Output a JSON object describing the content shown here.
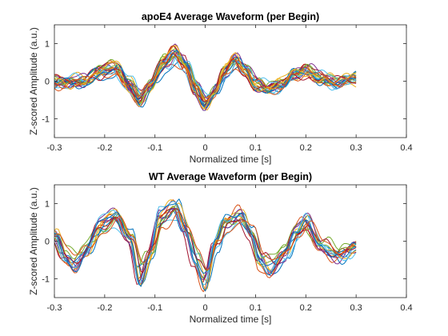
{
  "chart_data": [
    {
      "type": "line",
      "title": "apoE4 Average Waveform (per Begin)",
      "xlabel": "Normalized time [s]",
      "ylabel": "Z-scored Amplitude (a.u.)",
      "xlim": [
        -0.3,
        0.4
      ],
      "ylim": [
        -1.5,
        1.5
      ],
      "xticks": [
        "-0.3",
        "-0.2",
        "-0.1",
        "0",
        "0.1",
        "0.2",
        "0.3",
        "0.4"
      ],
      "yticks": [
        "-1",
        "0",
        "1"
      ],
      "grid": false,
      "legend": "none",
      "series_count": 24,
      "mean_waveform": {
        "x": [
          -0.3,
          -0.27,
          -0.24,
          -0.21,
          -0.18,
          -0.15,
          -0.13,
          -0.11,
          -0.08,
          -0.06,
          -0.04,
          -0.02,
          0.0,
          0.02,
          0.04,
          0.06,
          0.08,
          0.1,
          0.12,
          0.15,
          0.18,
          0.2,
          0.23,
          0.26,
          0.28,
          0.3
        ],
        "y": [
          0.0,
          -0.03,
          0.0,
          0.22,
          0.35,
          -0.1,
          -0.48,
          -0.1,
          0.48,
          0.7,
          0.42,
          -0.15,
          -0.58,
          -0.22,
          0.26,
          0.52,
          0.28,
          -0.08,
          -0.18,
          -0.08,
          0.15,
          0.28,
          0.06,
          0.0,
          0.02,
          0.05
        ]
      }
    },
    {
      "type": "line",
      "title": "WT Average Waveform (per Begin)",
      "xlabel": "Normalized time [s]",
      "ylabel": "Z-scored Amplitude (a.u.)",
      "xlim": [
        -0.3,
        0.4
      ],
      "ylim": [
        -1.5,
        1.5
      ],
      "xticks": [
        "-0.3",
        "-0.2",
        "-0.1",
        "0",
        "0.1",
        "0.2",
        "0.3",
        "0.4"
      ],
      "yticks": [
        "-1",
        "0",
        "1"
      ],
      "grid": false,
      "legend": "none",
      "series_count": 16,
      "mean_waveform": {
        "x": [
          -0.3,
          -0.28,
          -0.26,
          -0.24,
          -0.21,
          -0.18,
          -0.15,
          -0.13,
          -0.11,
          -0.09,
          -0.06,
          -0.04,
          -0.02,
          0.0,
          0.02,
          0.04,
          0.07,
          0.09,
          0.11,
          0.13,
          0.16,
          0.18,
          0.2,
          0.23,
          0.26,
          0.28,
          0.3
        ],
        "y": [
          0.1,
          -0.35,
          -0.58,
          -0.3,
          0.35,
          0.62,
          0.1,
          -0.88,
          -0.35,
          0.55,
          0.88,
          0.3,
          -0.45,
          -1.0,
          -0.1,
          0.45,
          0.65,
          0.22,
          -0.48,
          -0.72,
          -0.3,
          0.25,
          0.5,
          -0.15,
          -0.38,
          -0.28,
          -0.1
        ]
      }
    }
  ],
  "series_colors": [
    "#0072BD",
    "#D95319",
    "#EDB120",
    "#7E2F8E",
    "#77AC30",
    "#4DBEEE",
    "#A2142F"
  ]
}
